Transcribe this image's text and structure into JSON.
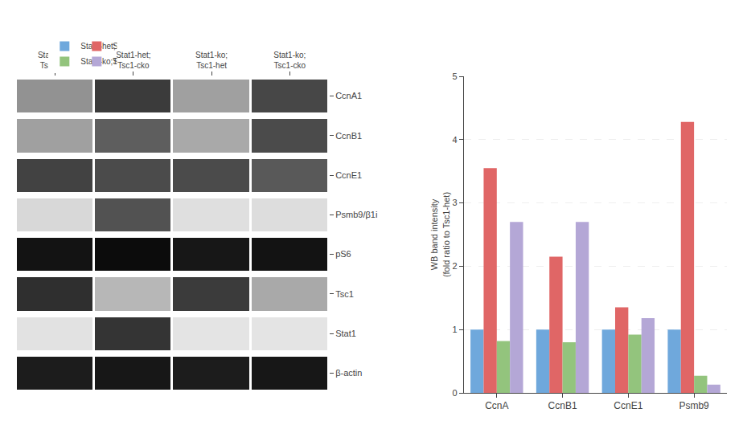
{
  "chart_data": [
    {
      "type": "heatmap",
      "x": [
        "Stat1-het;\nTsc1-het",
        "Stat1-het;\nTsc1-cko",
        "Stat1-ko;\nTsc1-het",
        "Stat1-ko;\nTsc1-cko"
      ],
      "y": [
        "CcnA1",
        "CcnB1",
        "CcnE1",
        "Psmb9/β1i",
        "pS6",
        "Tsc1",
        "Stat1",
        "β-actin"
      ],
      "values": [
        [
          0.38,
          0.75,
          0.32,
          0.7
        ],
        [
          0.32,
          0.6,
          0.28,
          0.68
        ],
        [
          0.72,
          0.68,
          0.68,
          0.62
        ],
        [
          0.08,
          0.65,
          0.05,
          0.06
        ],
        [
          0.92,
          0.95,
          0.9,
          0.92
        ],
        [
          0.8,
          0.22,
          0.75,
          0.28
        ],
        [
          0.04,
          0.78,
          0.03,
          0.03
        ],
        [
          0.88,
          0.9,
          0.88,
          0.9
        ]
      ],
      "zlim": [
        0,
        1
      ],
      "grid": false
    },
    {
      "type": "bar",
      "categories": [
        "CcnA",
        "CcnB1",
        "CcnE1",
        "Psmb9"
      ],
      "series": [
        {
          "name": "Stat1-het;Tsc1-het",
          "color": "#6fa8dc",
          "values": [
            1.0,
            1.0,
            1.0,
            1.0
          ]
        },
        {
          "name": "Stat1-het;Tsc1-cko",
          "color": "#e06666",
          "values": [
            3.55,
            2.15,
            1.35,
            4.28
          ]
        },
        {
          "name": "Stat1-ko;Tsc1-het",
          "color": "#93c47d",
          "values": [
            0.82,
            0.8,
            0.92,
            0.27
          ]
        },
        {
          "name": "Stat1-ko;Tsc1-cko",
          "color": "#b4a7d6",
          "values": [
            2.7,
            2.7,
            1.18,
            0.13
          ]
        }
      ],
      "ylabel": "WB band intensity\n(fold ratio to Tsc1-het)",
      "ylim": [
        0,
        5
      ],
      "yticks": [
        0,
        1,
        2,
        3,
        4,
        5
      ],
      "grid": true,
      "legend": "upper left"
    }
  ]
}
